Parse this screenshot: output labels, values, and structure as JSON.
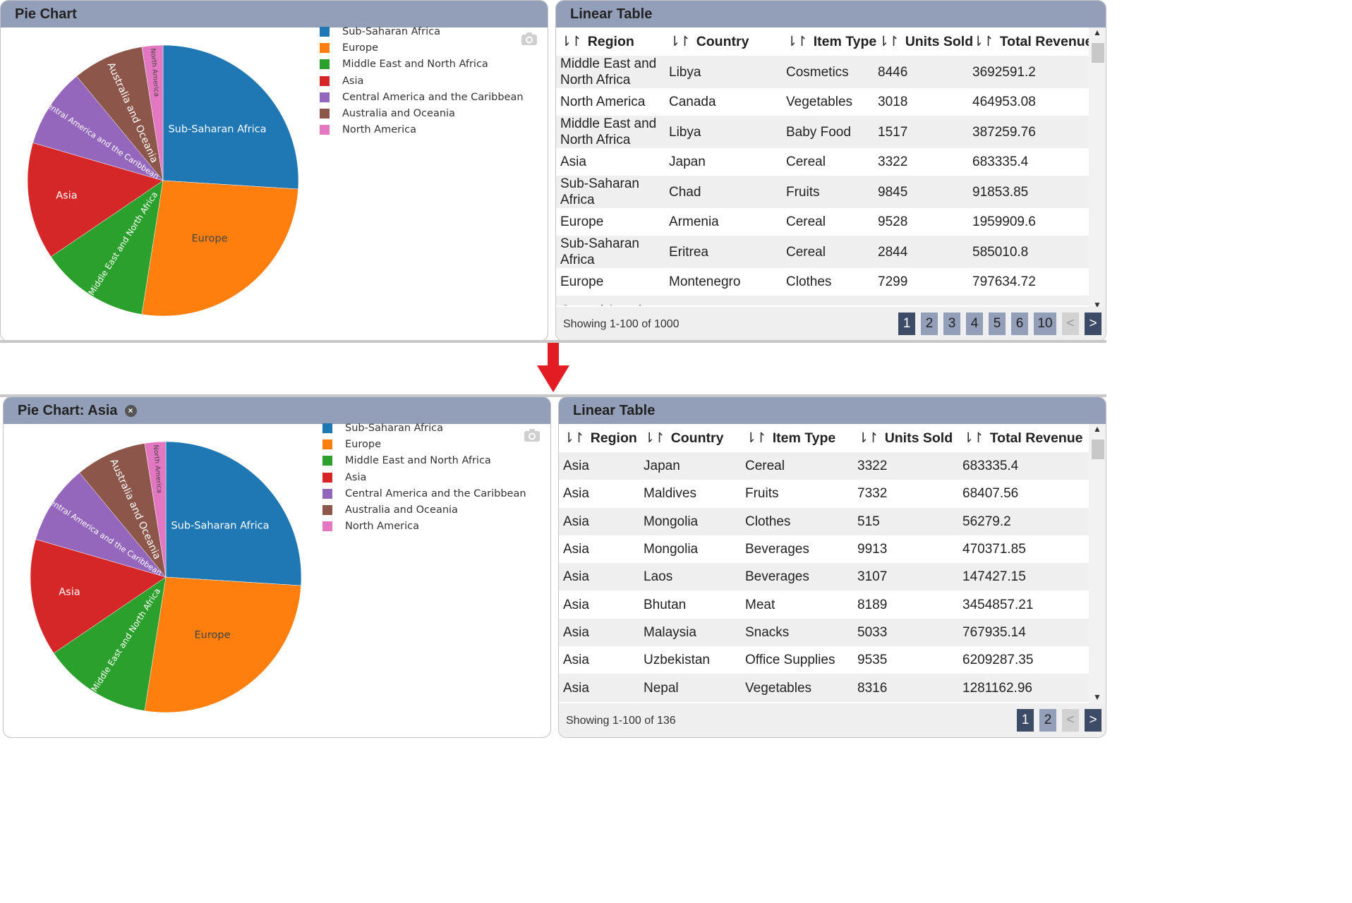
{
  "colors": {
    "header": "#939fb8",
    "page_active": "#3c4b66",
    "arrow": "#e31b23"
  },
  "top": {
    "pie_panel": {
      "title": "Pie Chart",
      "camera_icon": "camera-icon"
    },
    "table_panel": {
      "title": "Linear Table",
      "columns": [
        "Region",
        "Country",
        "Item Type",
        "Units Sold",
        "Total Revenue"
      ],
      "rows": [
        [
          "Middle East and North Africa",
          "Libya",
          "Cosmetics",
          "8446",
          "3692591.2"
        ],
        [
          "North America",
          "Canada",
          "Vegetables",
          "3018",
          "464953.08"
        ],
        [
          "Middle East and North Africa",
          "Libya",
          "Baby Food",
          "1517",
          "387259.76"
        ],
        [
          "Asia",
          "Japan",
          "Cereal",
          "3322",
          "683335.4"
        ],
        [
          "Sub-Saharan Africa",
          "Chad",
          "Fruits",
          "9845",
          "91853.85"
        ],
        [
          "Europe",
          "Armenia",
          "Cereal",
          "9528",
          "1959909.6"
        ],
        [
          "Sub-Saharan Africa",
          "Eritrea",
          "Cereal",
          "2844",
          "585010.8"
        ],
        [
          "Europe",
          "Montenegro",
          "Clothes",
          "7299",
          "797634.72"
        ],
        [
          "Central America",
          "",
          "",
          "",
          ""
        ]
      ],
      "showing": "Showing 1-100 of 1000",
      "pages": [
        "1",
        "2",
        "3",
        "4",
        "5",
        "6",
        "10"
      ],
      "prev": "<",
      "next": ">"
    }
  },
  "bottom": {
    "pie_panel": {
      "title": "Pie Chart: Asia",
      "close_icon": "close-icon",
      "close": "×"
    },
    "table_panel": {
      "title": "Linear Table",
      "columns": [
        "Region",
        "Country",
        "Item Type",
        "Units Sold",
        "Total Revenue"
      ],
      "rows": [
        [
          "Asia",
          "Japan",
          "Cereal",
          "3322",
          "683335.4"
        ],
        [
          "Asia",
          "Maldives",
          "Fruits",
          "7332",
          "68407.56"
        ],
        [
          "Asia",
          "Mongolia",
          "Clothes",
          "515",
          "56279.2"
        ],
        [
          "Asia",
          "Mongolia",
          "Beverages",
          "9913",
          "470371.85"
        ],
        [
          "Asia",
          "Laos",
          "Beverages",
          "3107",
          "147427.15"
        ],
        [
          "Asia",
          "Bhutan",
          "Meat",
          "8189",
          "3454857.21"
        ],
        [
          "Asia",
          "Malaysia",
          "Snacks",
          "5033",
          "767935.14"
        ],
        [
          "Asia",
          "Uzbekistan",
          "Office Supplies",
          "9535",
          "6209287.35"
        ],
        [
          "Asia",
          "Nepal",
          "Vegetables",
          "8316",
          "1281162.96"
        ]
      ],
      "showing": "Showing 1-100 of 136",
      "pages": [
        "1",
        "2"
      ],
      "prev": "<",
      "next": ">"
    }
  },
  "sort_icon": "⇂↾",
  "chart_data": {
    "type": "pie",
    "categories": [
      "Sub-Saharan Africa",
      "Europe",
      "Middle East and North Africa",
      "Asia",
      "Central America and the Caribbean",
      "Australia and Oceania",
      "North America"
    ],
    "values": [
      26,
      26.5,
      13,
      14,
      9.5,
      8.5,
      2.5
    ],
    "colors": [
      "#1f77b4",
      "#ff7f0e",
      "#2ca02c",
      "#d62728",
      "#9467bd",
      "#8c564b",
      "#e377c2"
    ],
    "label_colors": [
      "#ffffff",
      "#444444",
      "#ffffff",
      "#ffffff",
      "#ffffff",
      "#ffffff",
      "#444444"
    ],
    "legend": "right"
  }
}
